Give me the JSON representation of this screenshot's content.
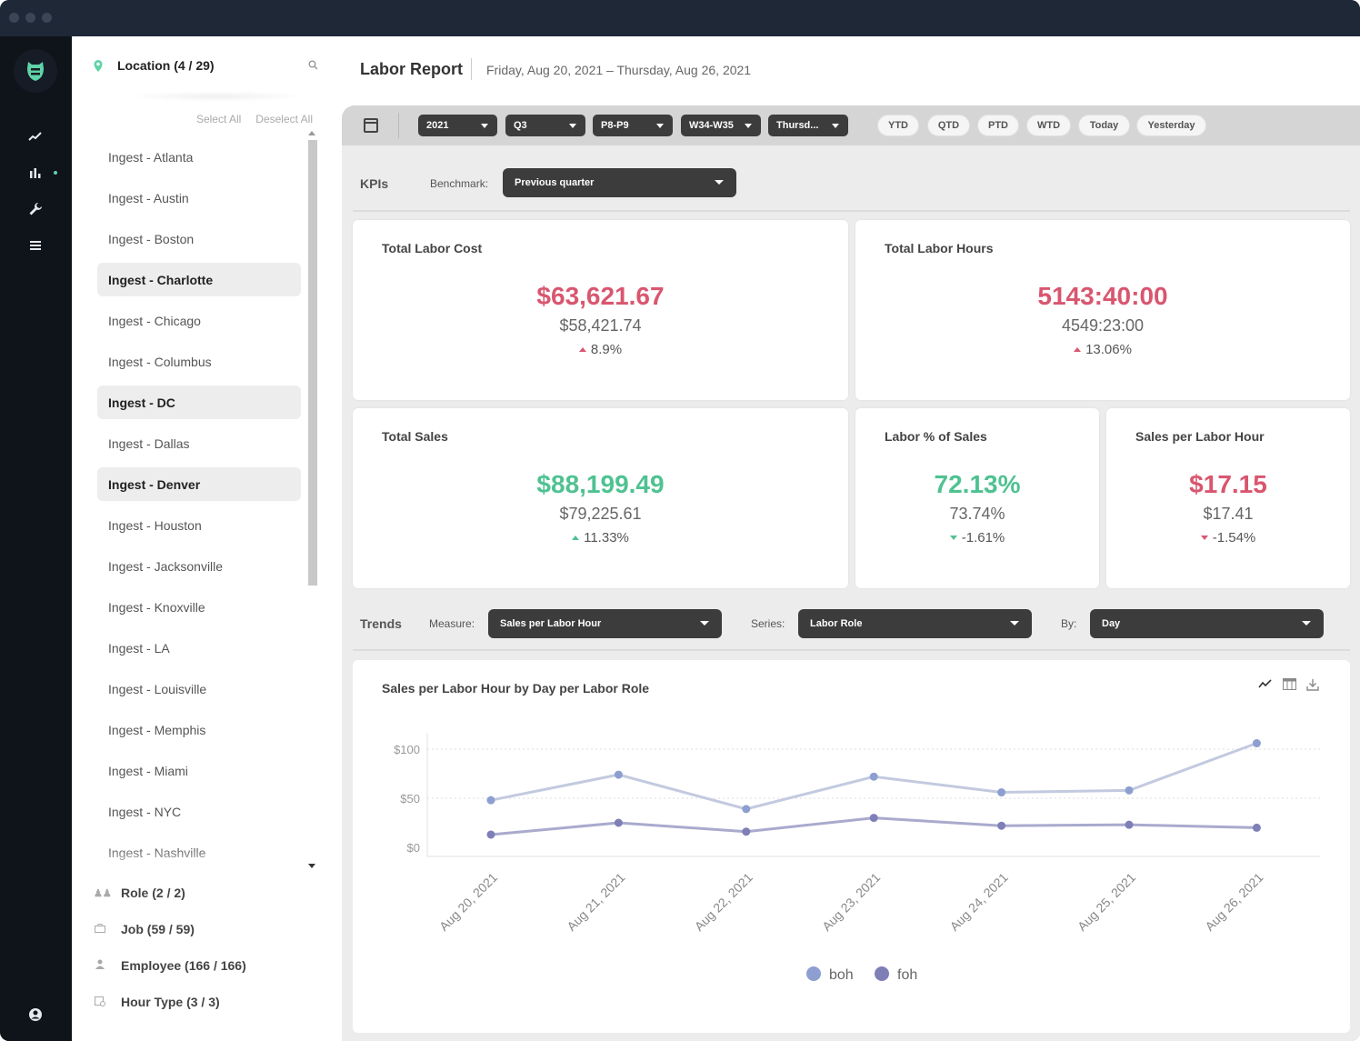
{
  "sidebar_nav": {
    "items": [
      "trend-icon",
      "bar-chart-icon",
      "wrench-icon",
      "list-icon"
    ],
    "account_icon": "user-circle-icon"
  },
  "filters": {
    "location_label": "Location (4 / 29)",
    "select_all": "Select All",
    "deselect_all": "Deselect All",
    "locations": [
      {
        "name": "Ingest - Atlanta",
        "selected": false
      },
      {
        "name": "Ingest - Austin",
        "selected": false
      },
      {
        "name": "Ingest - Boston",
        "selected": false
      },
      {
        "name": "Ingest - Charlotte",
        "selected": true
      },
      {
        "name": "Ingest - Chicago",
        "selected": false
      },
      {
        "name": "Ingest - Columbus",
        "selected": false
      },
      {
        "name": "Ingest - DC",
        "selected": true
      },
      {
        "name": "Ingest - Dallas",
        "selected": false
      },
      {
        "name": "Ingest - Denver",
        "selected": true
      },
      {
        "name": "Ingest - Houston",
        "selected": false
      },
      {
        "name": "Ingest - Jacksonville",
        "selected": false
      },
      {
        "name": "Ingest - Knoxville",
        "selected": false
      },
      {
        "name": "Ingest - LA",
        "selected": false
      },
      {
        "name": "Ingest - Louisville",
        "selected": false
      },
      {
        "name": "Ingest - Memphis",
        "selected": false
      },
      {
        "name": "Ingest - Miami",
        "selected": false
      },
      {
        "name": "Ingest - NYC",
        "selected": false
      },
      {
        "name": "Ingest - Nashville",
        "selected": false
      }
    ],
    "role_label": "Role (2 / 2)",
    "job_label": "Job (59 / 59)",
    "employee_label": "Employee (166 / 166)",
    "hour_type_label": "Hour Type (3 / 3)"
  },
  "header": {
    "title": "Labor Report",
    "date_range": "Friday, Aug 20, 2021 – Thursday, Aug 26, 2021"
  },
  "toolbar": {
    "year": "2021",
    "quarter": "Q3",
    "period": "P8-P9",
    "week": "W34-W35",
    "day": "Thursd...",
    "quick": [
      "YTD",
      "QTD",
      "PTD",
      "WTD",
      "Today",
      "Yesterday"
    ]
  },
  "kpis": {
    "section_label": "KPIs",
    "benchmark_label": "Benchmark:",
    "benchmark_value": "Previous quarter",
    "cards": [
      {
        "title": "Total Labor Cost",
        "value": "$63,621.67",
        "previous": "$58,421.74",
        "change": "8.9%",
        "direction": "up",
        "color": "#d9566f"
      },
      {
        "title": "Total Labor Hours",
        "value": "5143:40:00",
        "previous": "4549:23:00",
        "change": "13.06%",
        "direction": "up",
        "color": "#d9566f"
      },
      {
        "title": "Total Sales",
        "value": "$88,199.49",
        "previous": "$79,225.61",
        "change": "11.33%",
        "direction": "up",
        "color": "#4fc291"
      },
      {
        "title": "Labor % of Sales",
        "value": "72.13%",
        "previous": "73.74%",
        "change": "-1.61%",
        "direction": "down",
        "color": "#4fc291"
      },
      {
        "title": "Sales per Labor Hour",
        "value": "$17.15",
        "previous": "$17.41",
        "change": "-1.54%",
        "direction": "down",
        "color": "#d9566f"
      }
    ]
  },
  "trends": {
    "section_label": "Trends",
    "measure_label": "Measure:",
    "measure_value": "Sales per Labor Hour",
    "series_label": "Series:",
    "series_value": "Labor Role",
    "by_label": "By:",
    "by_value": "Day",
    "chart_title": "Sales per Labor Hour by Day per Labor Role",
    "tools": [
      "line-chart-icon",
      "table-icon",
      "download-icon"
    ]
  },
  "chart_data": {
    "type": "line",
    "title": "Sales per Labor Hour by Day per Labor Role",
    "categories": [
      "Aug 20, 2021",
      "Aug 21, 2021",
      "Aug 22, 2021",
      "Aug 23, 2021",
      "Aug 24, 2021",
      "Aug 25, 2021",
      "Aug 26, 2021"
    ],
    "y_ticks": [
      "$0",
      "$50",
      "$100"
    ],
    "ylim": [
      0,
      110
    ],
    "grid": true,
    "legend_position": "bottom",
    "series": [
      {
        "name": "boh",
        "color": "#c3cadf",
        "values": [
          48,
          74,
          39,
          72,
          56,
          58,
          106
        ]
      },
      {
        "name": "foh",
        "color": "#a9aacd",
        "values": [
          13,
          25,
          16,
          30,
          22,
          23,
          20
        ]
      }
    ],
    "legend_colors": {
      "boh": "#8d9fd1",
      "foh": "#7f7fb8"
    }
  }
}
